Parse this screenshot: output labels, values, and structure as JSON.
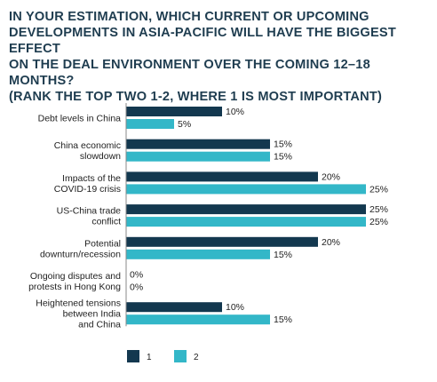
{
  "title": "IN YOUR ESTIMATION, WHICH CURRENT OR UPCOMING\nDEVELOPMENTS IN ASIA-PACIFIC WILL HAVE THE BIGGEST EFFECT\nON THE DEAL ENVIRONMENT OVER THE COMING 12–18 MONTHS?\n(RANK THE TOP TWO 1-2, WHERE 1 IS MOST IMPORTANT)",
  "colors": {
    "series1": "#13384f",
    "series2": "#33b7c8"
  },
  "chart_data": {
    "type": "bar",
    "orientation": "horizontal",
    "categories": [
      [
        "Debt levels in China"
      ],
      [
        "China economic",
        "slowdown"
      ],
      [
        "Impacts of the",
        "COVID-19 crisis"
      ],
      [
        "US-China trade",
        "conflict"
      ],
      [
        "Potential",
        "downturn/recession"
      ],
      [
        "Ongoing disputes and",
        "protests in Hong Kong"
      ],
      [
        "Heightened tensions",
        "between India",
        "and China"
      ]
    ],
    "series": [
      {
        "name": "1",
        "values": [
          10,
          15,
          20,
          25,
          20,
          0,
          10
        ],
        "labels": [
          "10%",
          "15%",
          "20%",
          "25%",
          "20%",
          "0%",
          "10%"
        ]
      },
      {
        "name": "2",
        "values": [
          5,
          15,
          25,
          25,
          15,
          0,
          15
        ],
        "labels": [
          "5%",
          "15%",
          "25%",
          "25%",
          "15%",
          "0%",
          "15%"
        ]
      }
    ],
    "xlim": [
      0,
      25
    ],
    "grid": false,
    "legend_position": "bottom-left"
  }
}
